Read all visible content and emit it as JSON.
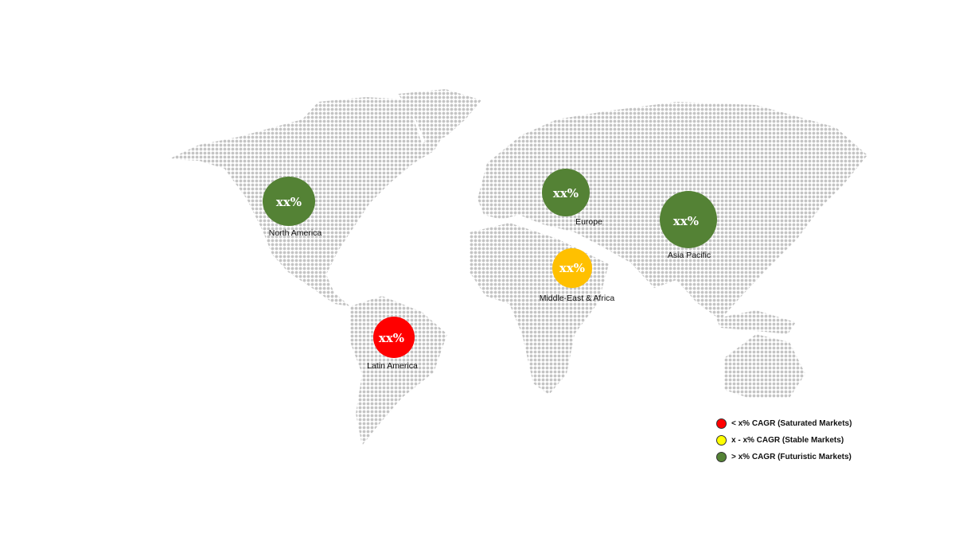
{
  "map": {
    "land_color": "#c4c4c4",
    "regions": [
      {
        "name": "North America",
        "value": "xx%",
        "color": "#548235",
        "category": "futuristic"
      },
      {
        "name": "Europe",
        "value": "xx%",
        "color": "#548235",
        "category": "futuristic"
      },
      {
        "name": "Asia Pacific",
        "value": "xx%",
        "color": "#548235",
        "category": "futuristic"
      },
      {
        "name": "Middle-East & Africa",
        "value": "xx%",
        "color": "#ffc000",
        "category": "stable"
      },
      {
        "name": "Latin America",
        "value": "xx%",
        "color": "#ff0000",
        "category": "saturated"
      }
    ]
  },
  "legend": {
    "items": [
      {
        "label": "< x% CAGR (Saturated Markets)",
        "color": "#ff0000"
      },
      {
        "label": "x - x% CAGR (Stable Markets)",
        "color": "#ffff00"
      },
      {
        "label": "> x% CAGR (Futuristic Markets)",
        "color": "#548235"
      }
    ]
  }
}
